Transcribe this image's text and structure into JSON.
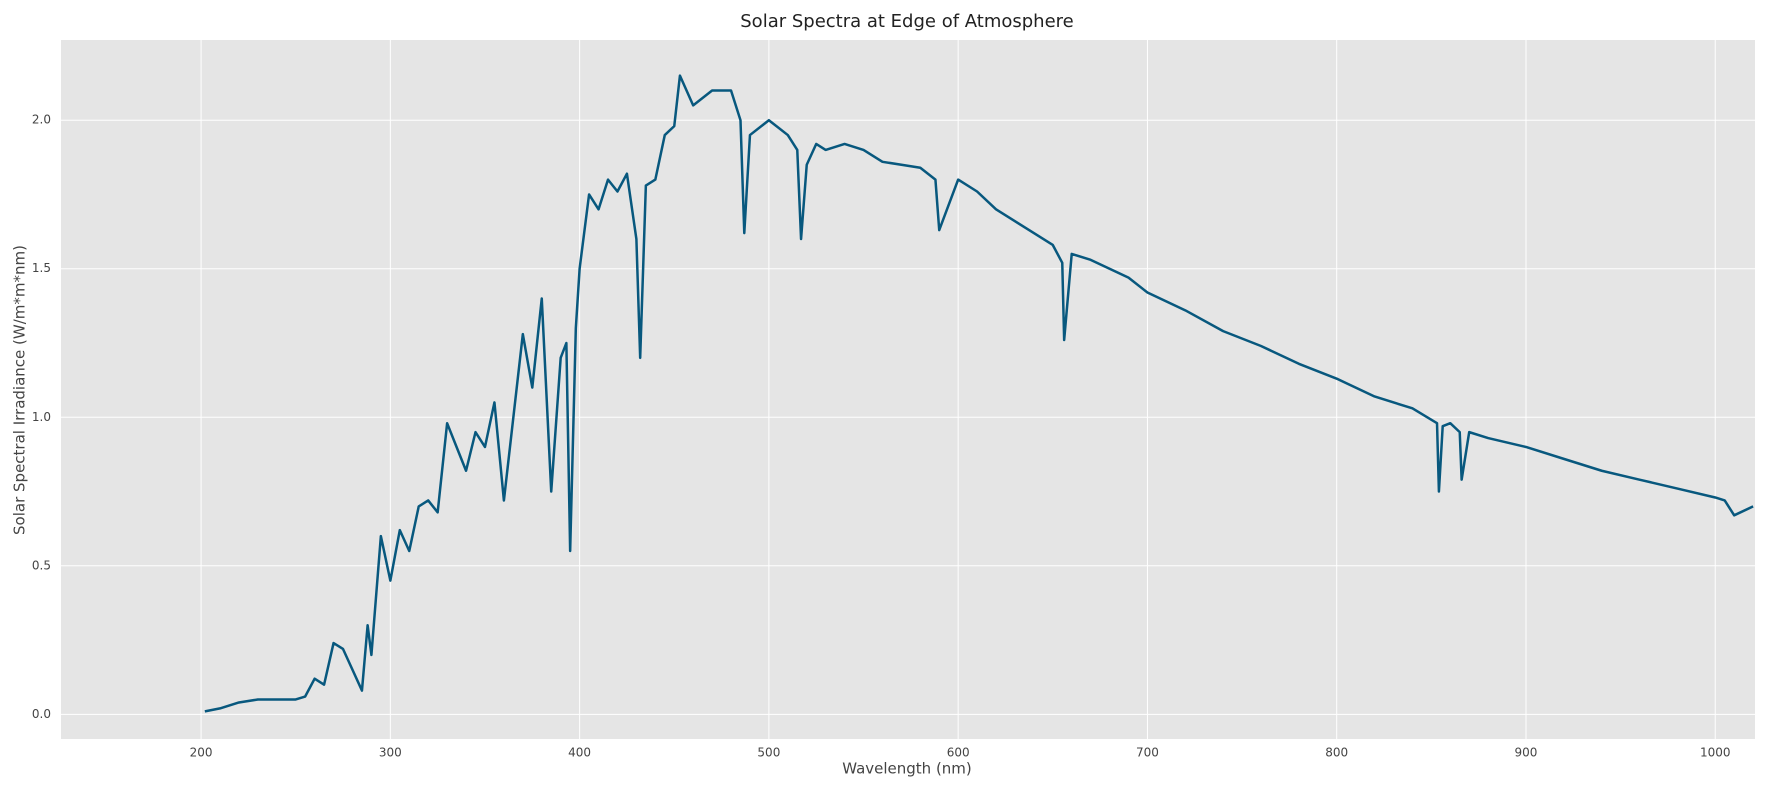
{
  "chart_data": {
    "type": "line",
    "title": "Solar Spectra at Edge of Atmosphere",
    "x_label": "Wavelength (nm)",
    "y_label": "Solar Spectral Irradiance (W/m*m*nm)",
    "x": [
      202,
      210,
      220,
      230,
      240,
      250,
      255,
      260,
      265,
      270,
      275,
      280,
      285,
      288,
      290,
      295,
      300,
      305,
      310,
      315,
      320,
      325,
      330,
      335,
      340,
      345,
      350,
      355,
      360,
      365,
      370,
      375,
      380,
      385,
      390,
      393,
      395,
      398,
      400,
      405,
      410,
      415,
      420,
      425,
      430,
      432,
      435,
      440,
      445,
      450,
      453,
      460,
      470,
      480,
      485,
      487,
      490,
      500,
      510,
      515,
      517,
      520,
      525,
      530,
      540,
      550,
      560,
      570,
      580,
      588,
      590,
      600,
      610,
      620,
      630,
      640,
      650,
      655,
      656,
      660,
      670,
      680,
      690,
      700,
      720,
      740,
      760,
      780,
      800,
      820,
      840,
      853,
      854,
      856,
      860,
      865,
      866,
      870,
      880,
      900,
      920,
      940,
      960,
      980,
      1000,
      1005,
      1010,
      1020
    ],
    "series": [
      {
        "name": "Solar Spectral Irradiance",
        "color": "#08587e",
        "values": [
          0.01,
          0.02,
          0.04,
          0.05,
          0.05,
          0.05,
          0.06,
          0.12,
          0.1,
          0.24,
          0.22,
          0.15,
          0.08,
          0.3,
          0.2,
          0.6,
          0.45,
          0.62,
          0.55,
          0.7,
          0.72,
          0.68,
          0.98,
          0.9,
          0.82,
          0.95,
          0.9,
          1.05,
          0.72,
          1.0,
          1.28,
          1.1,
          1.4,
          0.75,
          1.2,
          1.25,
          0.55,
          1.3,
          1.5,
          1.75,
          1.7,
          1.8,
          1.76,
          1.82,
          1.6,
          1.2,
          1.78,
          1.8,
          1.95,
          1.98,
          2.15,
          2.05,
          2.1,
          2.1,
          2.0,
          1.62,
          1.95,
          2.0,
          1.95,
          1.9,
          1.6,
          1.85,
          1.92,
          1.9,
          1.92,
          1.9,
          1.86,
          1.85,
          1.84,
          1.8,
          1.63,
          1.8,
          1.76,
          1.7,
          1.66,
          1.62,
          1.58,
          1.52,
          1.26,
          1.55,
          1.53,
          1.5,
          1.47,
          1.42,
          1.36,
          1.29,
          1.24,
          1.18,
          1.13,
          1.07,
          1.03,
          0.98,
          0.75,
          0.97,
          0.98,
          0.95,
          0.79,
          0.95,
          0.93,
          0.9,
          0.86,
          0.82,
          0.79,
          0.76,
          0.73,
          0.72,
          0.67,
          0.7
        ]
      }
    ],
    "xlim": [
      126,
      1021
    ],
    "ylim": [
      -0.083,
      2.27
    ],
    "xticks": [
      200,
      300,
      400,
      500,
      600,
      700,
      800,
      900,
      1000
    ],
    "yticks": [
      {
        "value": 0,
        "label": "0.0"
      },
      0.5,
      {
        "value": 1,
        "label": "1.0"
      },
      1.5,
      {
        "value": 2,
        "label": "2.0"
      }
    ],
    "grid": true
  }
}
